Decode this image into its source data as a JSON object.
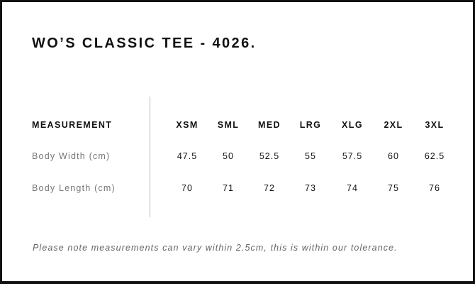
{
  "title": "WO’S CLASSIC TEE - 4026.",
  "table": {
    "header_label": "MEASUREMENT",
    "sizes": [
      "XSM",
      "SML",
      "MED",
      "LRG",
      "XLG",
      "2XL",
      "3XL"
    ],
    "rows": [
      {
        "label": "Body Width (cm)",
        "values": [
          "47.5",
          "50",
          "52.5",
          "55",
          "57.5",
          "60",
          "62.5"
        ]
      },
      {
        "label": "Body Length (cm)",
        "values": [
          "70",
          "71",
          "72",
          "73",
          "74",
          "75",
          "76"
        ]
      }
    ]
  },
  "note": "Please note measurements can vary within 2.5cm, this is within our tolerance."
}
